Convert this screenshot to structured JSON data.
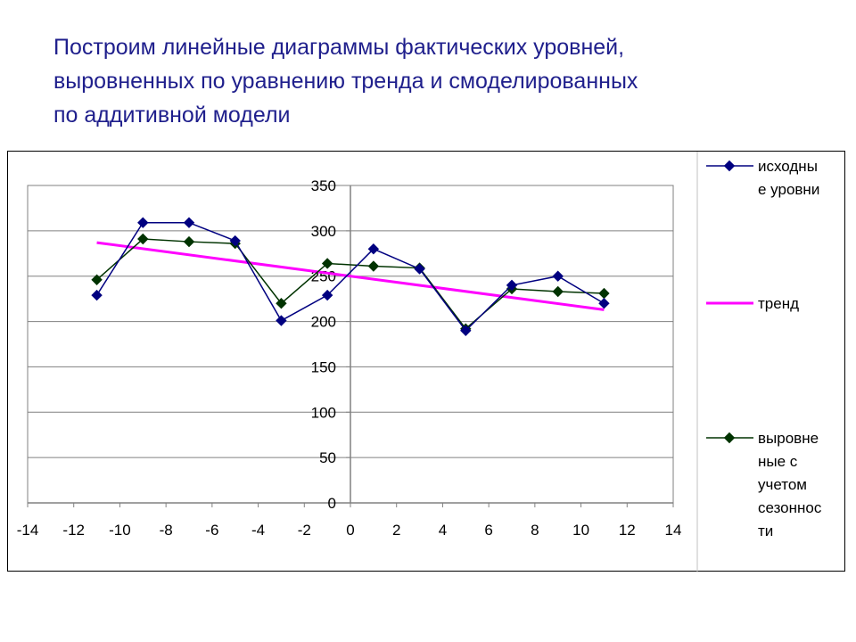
{
  "title": {
    "lines": [
      "Построим линейные диаграммы фактических уровней,",
      "выровненных по уравнению тренда и смоделированных",
      "по аддитивной модели"
    ]
  },
  "colors": {
    "title": "#1f1f8c",
    "series_initial": "#000080",
    "series_trend": "#ff00ff",
    "series_seasonal": "#003300"
  },
  "chart_data": {
    "type": "line",
    "xlim": [
      -14,
      14
    ],
    "ylim": [
      0,
      350
    ],
    "x_ticks": [
      "-14",
      "-12",
      "-10",
      "-8",
      "-6",
      "-4",
      "-2",
      "0",
      "2",
      "4",
      "6",
      "8",
      "10",
      "12",
      "14"
    ],
    "y_ticks": [
      "0",
      "50",
      "100",
      "150",
      "200",
      "250",
      "300",
      "350"
    ],
    "grid": true,
    "legend_position": "right",
    "series": [
      {
        "name": "исходные уровни",
        "legend_lines": [
          "исходны",
          "е уровни"
        ],
        "marker": "diamond",
        "x": [
          -11,
          -9,
          -7,
          -5,
          -3,
          -1,
          1,
          3,
          5,
          7,
          9,
          11
        ],
        "y": [
          229,
          309,
          309,
          289,
          201,
          229,
          280,
          258,
          190,
          240,
          250,
          220
        ]
      },
      {
        "name": "тренд",
        "legend_lines": [
          "тренд"
        ],
        "marker": "none",
        "x": [
          -11,
          11
        ],
        "y": [
          287,
          213
        ]
      },
      {
        "name": "выровненные с учетом сезонности",
        "legend_lines": [
          "выровне",
          "ные с",
          "учетом",
          "сезоннос",
          "ти"
        ],
        "marker": "diamond",
        "x": [
          -11,
          -9,
          -7,
          -5,
          -3,
          -1,
          1,
          3,
          5,
          7,
          9,
          11
        ],
        "y": [
          246,
          291,
          288,
          286,
          220,
          264,
          261,
          259,
          192,
          236,
          233,
          231
        ]
      }
    ]
  }
}
